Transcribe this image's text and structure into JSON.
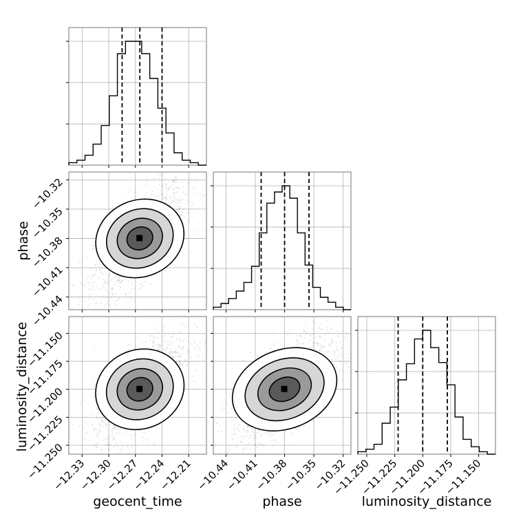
{
  "chart_data": {
    "type": "corner",
    "parameters": [
      "geocent_time",
      "phase",
      "luminosity_distance"
    ],
    "axis_labels": {
      "geocent_time": "geocent_time",
      "phase": "phase",
      "luminosity_distance": "luminosity_distance"
    },
    "ranges": {
      "geocent_time": [
        -12.345,
        -12.19
      ],
      "phase": [
        -10.453,
        -10.312
      ],
      "luminosity_distance": [
        -11.258,
        -11.135
      ]
    },
    "ticks": {
      "geocent_time": [
        "−12.33",
        "−12.30",
        "−12.27",
        "−12.24",
        "−12.21"
      ],
      "phase": [
        "−10.44",
        "−10.41",
        "−10.38",
        "−10.35",
        "−10.32"
      ],
      "luminosity_distance": [
        "−11.250",
        "−11.225",
        "−11.200",
        "−11.175",
        "−11.150"
      ]
    },
    "tick_values": {
      "geocent_time": [
        -12.33,
        -12.3,
        -12.27,
        -12.24,
        -12.21
      ],
      "phase": [
        -10.44,
        -10.41,
        -10.38,
        -10.35,
        -10.32
      ],
      "luminosity_distance": [
        -11.25,
        -11.225,
        -11.2,
        -11.175,
        -11.15
      ]
    },
    "quantiles": {
      "geocent_time": [
        -12.285,
        -12.265,
        -12.24
      ],
      "phase": [
        -10.404,
        -10.38,
        -10.355
      ],
      "luminosity_distance": [
        -11.222,
        -11.2,
        -11.178
      ]
    },
    "histograms": {
      "geocent_time": {
        "bins": [
          -12.345,
          -12.19
        ],
        "counts": [
          2,
          4,
          8,
          17,
          32,
          56,
          90,
          100,
          100,
          90,
          70,
          46,
          26,
          10,
          4,
          2,
          0
        ]
      },
      "phase": {
        "bins": [
          -10.453,
          -10.312
        ],
        "counts": [
          2,
          5,
          9,
          15,
          22,
          35,
          62,
          86,
          95,
          100,
          90,
          62,
          36,
          18,
          10,
          6,
          2,
          0
        ]
      },
      "luminosity_distance": {
        "bins": [
          -11.258,
          -11.135
        ],
        "counts": [
          2,
          4,
          8,
          25,
          38,
          60,
          73,
          93,
          100,
          86,
          74,
          56,
          30,
          12,
          6,
          2,
          0
        ]
      }
    },
    "grid": true
  }
}
